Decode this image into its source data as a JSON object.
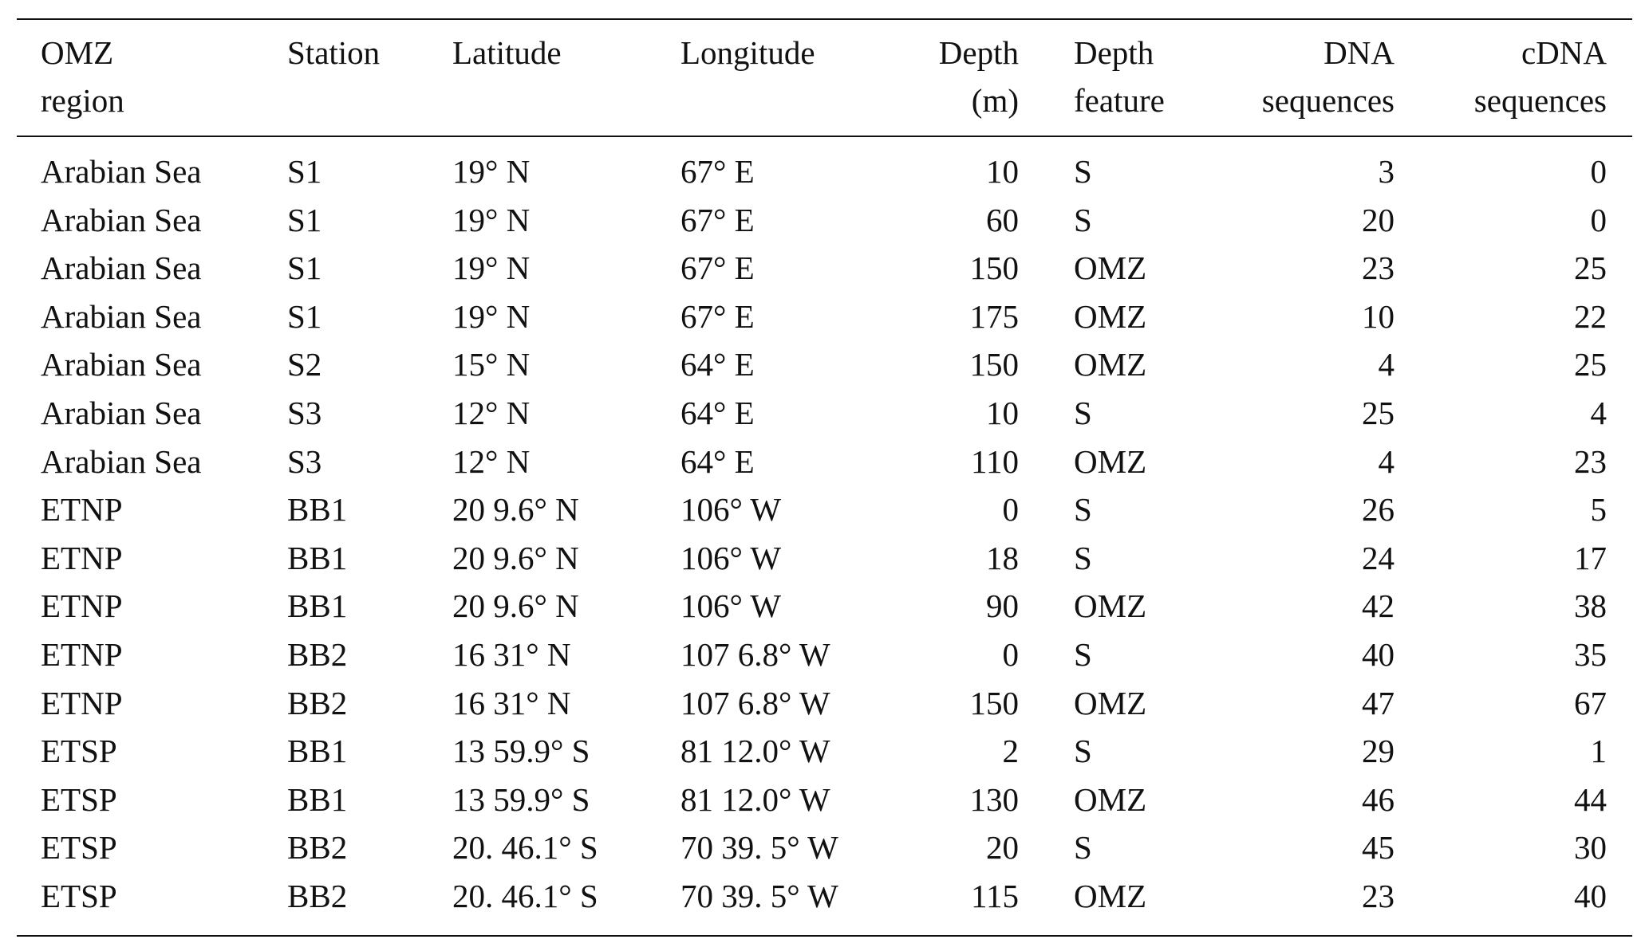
{
  "headers": [
    [
      "OMZ",
      "region"
    ],
    [
      "Station",
      ""
    ],
    [
      "Latitude",
      ""
    ],
    [
      "Longitude",
      ""
    ],
    [
      "Depth",
      "(m)"
    ],
    [
      "Depth",
      "feature"
    ],
    [
      "DNA",
      "sequences"
    ],
    [
      "cDNA",
      "sequences"
    ]
  ],
  "rows": [
    [
      "Arabian Sea",
      "S1",
      "19° N",
      "67° E",
      "10",
      "S",
      "3",
      "0"
    ],
    [
      "Arabian Sea",
      "S1",
      "19° N",
      "67° E",
      "60",
      "S",
      "20",
      "0"
    ],
    [
      "Arabian Sea",
      "S1",
      "19° N",
      "67° E",
      "150",
      "OMZ",
      "23",
      "25"
    ],
    [
      "Arabian Sea",
      "S1",
      "19° N",
      "67° E",
      "175",
      "OMZ",
      "10",
      "22"
    ],
    [
      "Arabian Sea",
      "S2",
      "15° N",
      "64° E",
      "150",
      "OMZ",
      "4",
      "25"
    ],
    [
      "Arabian Sea",
      "S3",
      "12° N",
      "64° E",
      "10",
      "S",
      "25",
      "4"
    ],
    [
      "Arabian Sea",
      "S3",
      "12° N",
      "64° E",
      "110",
      "OMZ",
      "4",
      "23"
    ],
    [
      "ETNP",
      "BB1",
      "20 9.6° N",
      "106° W",
      "0",
      "S",
      "26",
      "5"
    ],
    [
      "ETNP",
      "BB1",
      "20 9.6° N",
      "106° W",
      "18",
      "S",
      "24",
      "17"
    ],
    [
      "ETNP",
      "BB1",
      "20 9.6° N",
      "106° W",
      "90",
      "OMZ",
      "42",
      "38"
    ],
    [
      "ETNP",
      "BB2",
      "16 31° N",
      "107 6.8° W",
      "0",
      "S",
      "40",
      "35"
    ],
    [
      "ETNP",
      "BB2",
      "16 31° N",
      "107 6.8° W",
      "150",
      "OMZ",
      "47",
      "67"
    ],
    [
      "ETSP",
      "BB1",
      "13 59.9° S",
      "81 12.0° W",
      "2",
      "S",
      "29",
      "1"
    ],
    [
      "ETSP",
      "BB1",
      "13 59.9° S",
      "81 12.0° W",
      "130",
      "OMZ",
      "46",
      "44"
    ],
    [
      "ETSP",
      "BB2",
      "20. 46.1° S",
      "70 39. 5° W",
      "20",
      "S",
      "45",
      "30"
    ],
    [
      "ETSP",
      "BB2",
      "20. 46.1° S",
      "70 39. 5° W",
      "115",
      "OMZ",
      "23",
      "40"
    ]
  ]
}
